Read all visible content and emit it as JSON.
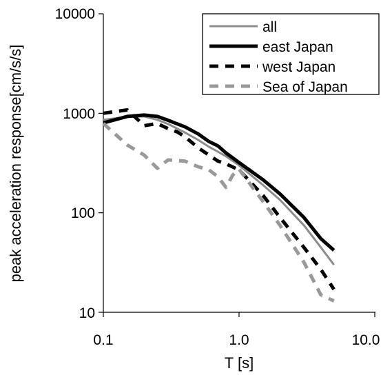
{
  "chart_data": {
    "type": "line",
    "xlabel": "T [s]",
    "ylabel": "peak acceleration response[cm/s/s]",
    "x_scale": "log",
    "y_scale": "log",
    "xlim": [
      0.1,
      10
    ],
    "ylim": [
      10,
      10000
    ],
    "x_tick_labels": [
      "0.1",
      "1.0",
      "10.0"
    ],
    "y_tick_labels": [
      "10",
      "100",
      "1000",
      "10000"
    ],
    "grid": false,
    "legend": {
      "position": "top-right",
      "frame": true
    },
    "series": [
      {
        "name": "all",
        "color": "#8c8c8c",
        "style": "solid",
        "x": [
          0.1,
          0.15,
          0.2,
          0.25,
          0.3,
          0.4,
          0.5,
          0.6,
          0.7,
          0.8,
          1.0,
          1.5,
          2.0,
          3.0,
          4.0,
          5.0
        ],
        "y": [
          860,
          920,
          930,
          860,
          780,
          640,
          540,
          460,
          410,
          370,
          300,
          190,
          135,
          75,
          45,
          30
        ]
      },
      {
        "name": "east Japan",
        "color": "#000000",
        "style": "solid-thick",
        "x": [
          0.1,
          0.15,
          0.2,
          0.25,
          0.3,
          0.4,
          0.5,
          0.6,
          0.7,
          0.8,
          1.0,
          1.5,
          2.0,
          3.0,
          4.0,
          5.0
        ],
        "y": [
          800,
          930,
          960,
          930,
          850,
          730,
          620,
          520,
          470,
          400,
          320,
          215,
          155,
          90,
          55,
          42
        ]
      },
      {
        "name": "west Japan",
        "color": "#000000",
        "style": "dashed",
        "x": [
          0.1,
          0.15,
          0.18,
          0.2,
          0.25,
          0.3,
          0.35,
          0.4,
          0.5,
          0.6,
          0.7,
          0.8,
          1.0,
          1.5,
          2.0,
          3.0,
          4.0,
          5.0
        ],
        "y": [
          1000,
          1080,
          860,
          750,
          790,
          700,
          650,
          580,
          450,
          380,
          330,
          310,
          270,
          150,
          90,
          45,
          27,
          17
        ]
      },
      {
        "name": "Sea of Japan",
        "color": "#999999",
        "style": "dashed",
        "x": [
          0.1,
          0.15,
          0.2,
          0.25,
          0.3,
          0.4,
          0.5,
          0.6,
          0.7,
          0.8,
          0.9,
          1.0,
          1.5,
          2.0,
          3.0,
          4.0,
          5.0
        ],
        "y": [
          790,
          480,
          380,
          280,
          340,
          330,
          290,
          270,
          230,
          180,
          240,
          275,
          130,
          75,
          32,
          15,
          13
        ]
      }
    ]
  }
}
